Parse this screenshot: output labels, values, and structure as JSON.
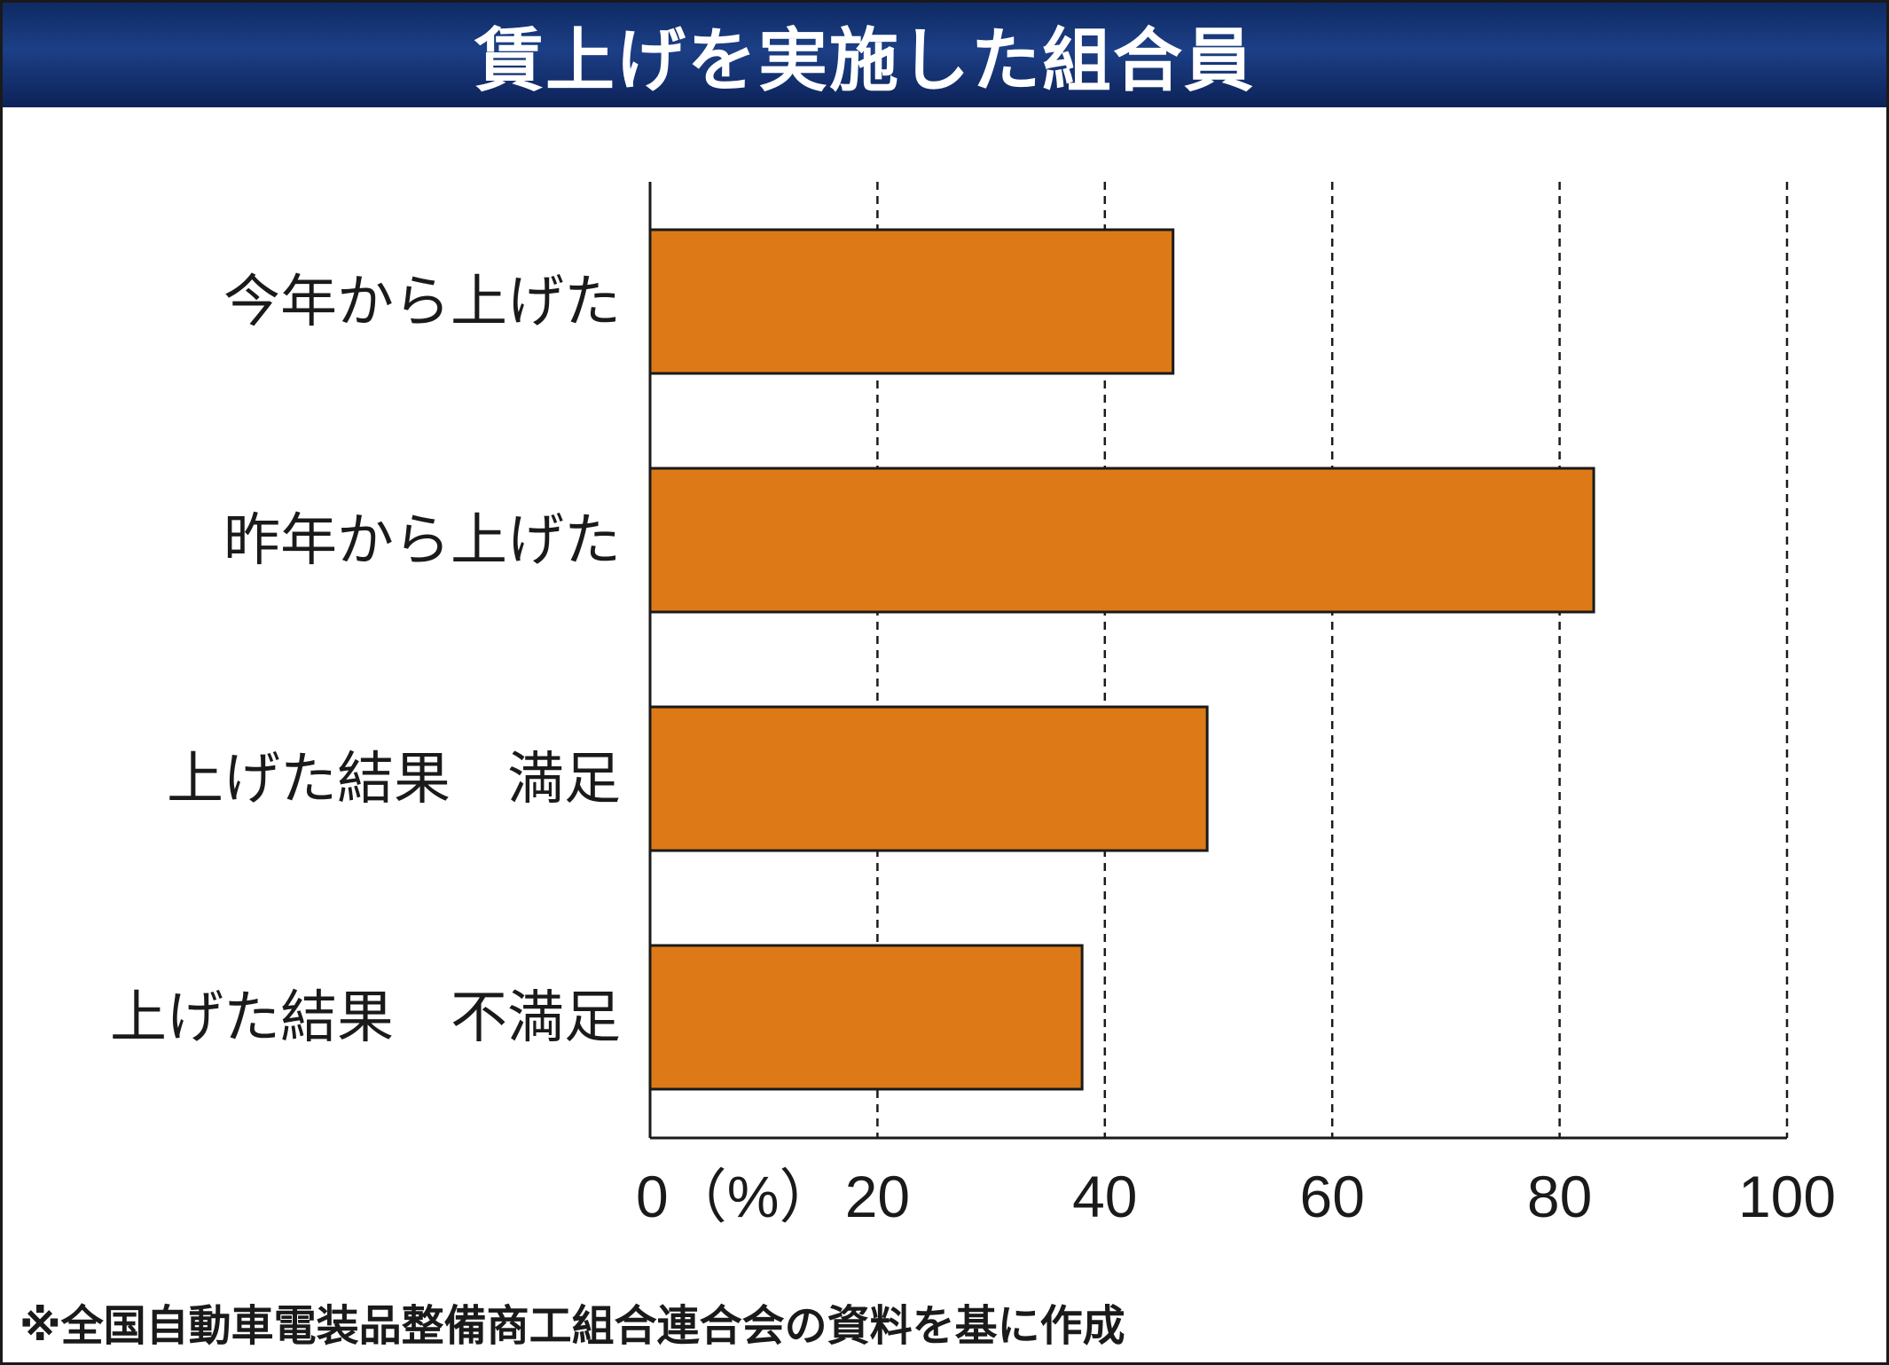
{
  "title": "賃上げを実施した組合員",
  "footnote": "※全国自動車電装品整備商工組合連合会の資料を基に作成",
  "colors": {
    "bar": "#dd7a17",
    "title_bar": "#132f6e",
    "axis": "#1a1a1a"
  },
  "chart_data": {
    "type": "bar",
    "orientation": "horizontal",
    "categories": [
      "今年から上げた",
      "昨年から上げた",
      "上げた結果　満足",
      "上げた結果　不満足"
    ],
    "values": [
      46,
      83,
      49,
      38
    ],
    "unit": "%",
    "xlim": [
      0,
      100
    ],
    "xticks": [
      0,
      20,
      40,
      60,
      80,
      100
    ],
    "xtick_labels": [
      "0（%）",
      "20",
      "40",
      "60",
      "80",
      "100"
    ],
    "grid": "vertical dashed",
    "legend": "none"
  }
}
